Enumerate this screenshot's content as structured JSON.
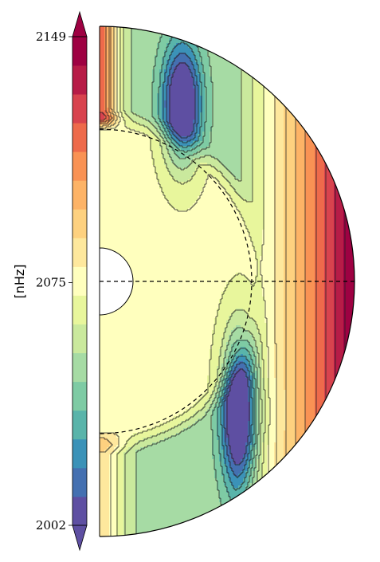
{
  "chart_data": {
    "type": "heatmap",
    "title": "",
    "colorbar": {
      "label": "[nHz]",
      "ticks": [
        {
          "value": 2149,
          "label": "2149"
        },
        {
          "value": 2075,
          "label": "2075"
        },
        {
          "value": 2002,
          "label": "2002"
        }
      ],
      "range": [
        2002,
        2149
      ],
      "extend": "both",
      "levels": [
        {
          "color": "#5e4fa2"
        },
        {
          "color": "#4470b1"
        },
        {
          "color": "#3b92b8"
        },
        {
          "color": "#59b4aa"
        },
        {
          "color": "#7ecba4"
        },
        {
          "color": "#a6dba4"
        },
        {
          "color": "#cae99d"
        },
        {
          "color": "#e8f69c"
        },
        {
          "color": "#ffffbe"
        },
        {
          "color": "#fee89d"
        },
        {
          "color": "#fed17f"
        },
        {
          "color": "#fdb366"
        },
        {
          "color": "#f99254"
        },
        {
          "color": "#ee6a4b"
        },
        {
          "color": "#d8434e"
        },
        {
          "color": "#b71c47"
        },
        {
          "color": "#9e0142"
        }
      ]
    },
    "plot": {
      "kind": "meridional-half-disk rotation frequency contour map",
      "radial_lines": [
        "equator (dashed)"
      ],
      "circles": [
        "tachocline reference (dashed)",
        "inner core boundary (solid, white fill)"
      ]
    }
  }
}
